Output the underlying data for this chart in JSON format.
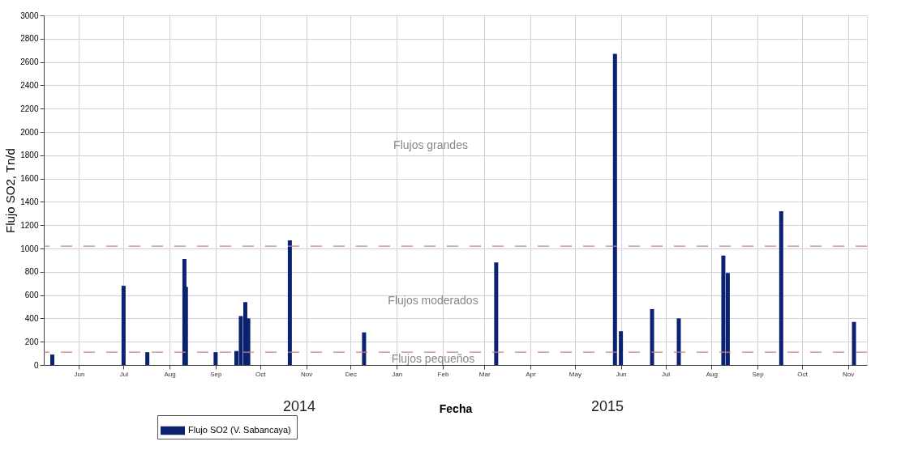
{
  "chart_data": {
    "type": "bar",
    "xlabel": "Fecha",
    "ylabel": "Flujo SO2, Tn/d",
    "x": [
      "2014-05-14",
      "2014-07-01",
      "2014-07-17",
      "2014-08-11",
      "2014-08-12",
      "2014-09-01",
      "2014-09-15",
      "2014-09-18",
      "2014-09-21",
      "2014-09-23",
      "2014-10-21",
      "2014-12-10",
      "2015-03-09",
      "2015-05-28",
      "2015-06-01",
      "2015-06-22",
      "2015-07-10",
      "2015-08-09",
      "2015-08-12",
      "2015-09-17",
      "2015-11-05"
    ],
    "series": [
      {
        "name": "Flujo SO2  (V. Sabancaya)",
        "color": "#0a2270",
        "values": [
          90,
          680,
          110,
          910,
          670,
          110,
          120,
          420,
          540,
          400,
          1070,
          280,
          880,
          2670,
          290,
          480,
          400,
          940,
          790,
          1320,
          370
        ]
      }
    ],
    "xlim": [
      "2014-05-11",
      "2015-11-11"
    ],
    "xticks": [
      {
        "value": "2014-06-01",
        "label": "Jun"
      },
      {
        "value": "2014-07-01",
        "label": "Jul"
      },
      {
        "value": "2014-08-01",
        "label": "Aug"
      },
      {
        "value": "2014-09-01",
        "label": "Sep"
      },
      {
        "value": "2014-10-01",
        "label": "Oct"
      },
      {
        "value": "2014-11-01",
        "label": "Nov"
      },
      {
        "value": "2014-12-01",
        "label": "Dec"
      },
      {
        "value": "2015-01-01",
        "label": "Jan"
      },
      {
        "value": "2015-02-01",
        "label": "Feb"
      },
      {
        "value": "2015-03-01",
        "label": "Mar"
      },
      {
        "value": "2015-04-01",
        "label": "Apr"
      },
      {
        "value": "2015-05-01",
        "label": "May"
      },
      {
        "value": "2015-06-01",
        "label": "Jun"
      },
      {
        "value": "2015-07-01",
        "label": "Jul"
      },
      {
        "value": "2015-08-01",
        "label": "Aug"
      },
      {
        "value": "2015-09-01",
        "label": "Sep"
      },
      {
        "value": "2015-10-01",
        "label": "Oct"
      },
      {
        "value": "2015-11-01",
        "label": "Nov"
      }
    ],
    "ylim": [
      0,
      3000
    ],
    "yticks": [
      0,
      200,
      400,
      600,
      800,
      1000,
      1200,
      1400,
      1600,
      1800,
      2000,
      2200,
      2400,
      2600,
      2800,
      3000
    ],
    "ref_lines": [
      {
        "axis": "y",
        "value": 1020,
        "color": "#c98080",
        "line_style": "dashed"
      },
      {
        "axis": "y",
        "value": 110,
        "color": "#c98080",
        "line_style": "dashed"
      }
    ],
    "annotations": [
      "Flujos grandes",
      "Flujos moderados",
      "Flujos pequeños",
      "2014",
      "2015"
    ],
    "grid": true,
    "legend": "bottom"
  }
}
